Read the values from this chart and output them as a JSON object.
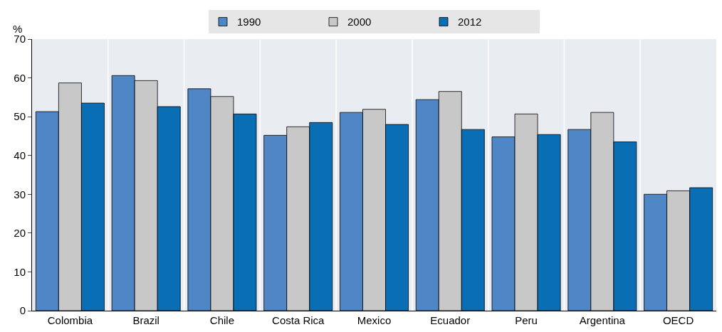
{
  "chart_data": {
    "type": "bar",
    "ylabel": "%",
    "categories": [
      "Colombia",
      "Brazil",
      "Chile",
      "Costa Rica",
      "Mexico",
      "Ecuador",
      "Peru",
      "Argentina",
      "OECD"
    ],
    "series": [
      {
        "name": "1990",
        "color": "#4f86c6",
        "values": [
          51.3,
          60.6,
          57.2,
          45.2,
          51.1,
          54.4,
          44.8,
          46.7,
          30.0
        ]
      },
      {
        "name": "2000",
        "color": "#c8c8c8",
        "values": [
          58.7,
          59.3,
          55.2,
          47.4,
          51.9,
          56.5,
          50.7,
          51.1,
          30.9
        ]
      },
      {
        "name": "2012",
        "color": "#0a6eb4",
        "values": [
          53.5,
          52.6,
          50.7,
          48.5,
          48.0,
          46.7,
          45.4,
          43.5,
          31.7
        ]
      }
    ],
    "ylim": [
      0,
      70
    ],
    "yticks": [
      0,
      10,
      20,
      30,
      40,
      50,
      60,
      70
    ],
    "grid": "x",
    "legend": "top"
  }
}
